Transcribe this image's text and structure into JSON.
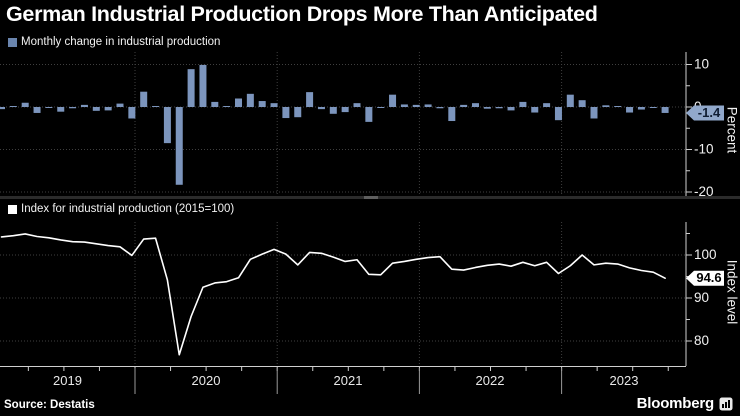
{
  "title": "German Industrial Production Drops More Than Anticipated",
  "panels": {
    "monthly": {
      "legend": "Monthly change in industrial production",
      "ylabel": "Percent",
      "badge": "-1.4"
    },
    "index": {
      "legend": "Index for industrial production (2015=100)",
      "ylabel": "Index level",
      "badge": "94.6"
    }
  },
  "footer": {
    "source": "Source: Destatis",
    "brand": "Bloomberg"
  },
  "chart_data": [
    {
      "type": "bar",
      "name": "monthly-change-industrial-production",
      "title": "Monthly change in industrial production",
      "ylabel": "Percent",
      "x": {
        "start": "2019-01",
        "end": "2023-09",
        "frequency": "monthly"
      },
      "year_labels": [
        "2019",
        "2020",
        "2021",
        "2022",
        "2023"
      ],
      "yticks": [
        10,
        0,
        -10,
        -20
      ],
      "yticks_minor": [
        5,
        -5,
        -15
      ],
      "ylim": [
        -20.9,
        12.9
      ],
      "grid": true,
      "last_value_label": "-1.4",
      "values": [
        -0.5,
        0.1,
        1.0,
        -1.4,
        -0.2,
        -1.1,
        -0.3,
        0.5,
        -0.9,
        -0.8,
        0.8,
        -2.7,
        3.6,
        0.1,
        -8.5,
        -18.3,
        8.9,
        9.9,
        1.2,
        0.2,
        2.0,
        3.1,
        1.4,
        0.9,
        -2.6,
        -2.4,
        3.5,
        -0.5,
        -1.6,
        -1.2,
        0.9,
        -3.5,
        -0.1,
        2.9,
        0.6,
        0.5,
        0.6,
        -0.3,
        -3.3,
        0.5,
        0.9,
        -0.4,
        -0.3,
        -0.8,
        1.2,
        -1.3,
        0.9,
        -3.1,
        2.9,
        1.6,
        -2.7,
        0.4,
        0.1,
        -1.3,
        -0.6,
        -0.2,
        -1.4
      ]
    },
    {
      "type": "line",
      "name": "index-industrial-production-2015-100",
      "title": "Index for industrial production (2015=100)",
      "ylabel": "Index level",
      "x": {
        "start": "2019-01",
        "end": "2023-09",
        "frequency": "monthly"
      },
      "year_labels": [
        "2019",
        "2020",
        "2021",
        "2022",
        "2023"
      ],
      "yticks": [
        100,
        90,
        80
      ],
      "yticks_minor": [
        105,
        95,
        85
      ],
      "ylim": [
        74.2,
        107.7
      ],
      "grid": true,
      "last_value_label": "94.6",
      "values": [
        104.2,
        104.5,
        104.9,
        104.3,
        104.0,
        103.5,
        103.1,
        103.0,
        102.6,
        102.2,
        101.9,
        99.9,
        103.7,
        103.9,
        94.2,
        76.8,
        85.7,
        92.5,
        93.5,
        93.8,
        94.7,
        99.0,
        100.2,
        101.3,
        100.2,
        97.7,
        100.6,
        100.4,
        99.5,
        98.5,
        98.9,
        95.5,
        95.4,
        98.1,
        98.5,
        99.0,
        99.4,
        99.6,
        96.7,
        96.5,
        97.1,
        97.6,
        97.9,
        97.4,
        98.3,
        97.5,
        98.3,
        95.7,
        97.5,
        100.0,
        97.7,
        98.1,
        97.9,
        97.0,
        96.4,
        96.0,
        94.6
      ]
    }
  ],
  "colors": {
    "background": "#000000",
    "bar": "#7c95bd",
    "bar_legend_swatch": "#6a85ae",
    "bar_badge_bg": "#91a8cb",
    "bar_badge_text": "#0f1d33",
    "line": "#ffffff",
    "line_legend_swatch": "#ffffff",
    "line_badge_bg": "#ffffff",
    "line_badge_text": "#000000",
    "grid": "#3f3f3f",
    "axis": "#cfcfcf",
    "tick_text": "#f2f2f2",
    "year_text": "#e8e8e8",
    "divider": "#2b2b2b",
    "divider_handle": "#5e5e5e"
  }
}
